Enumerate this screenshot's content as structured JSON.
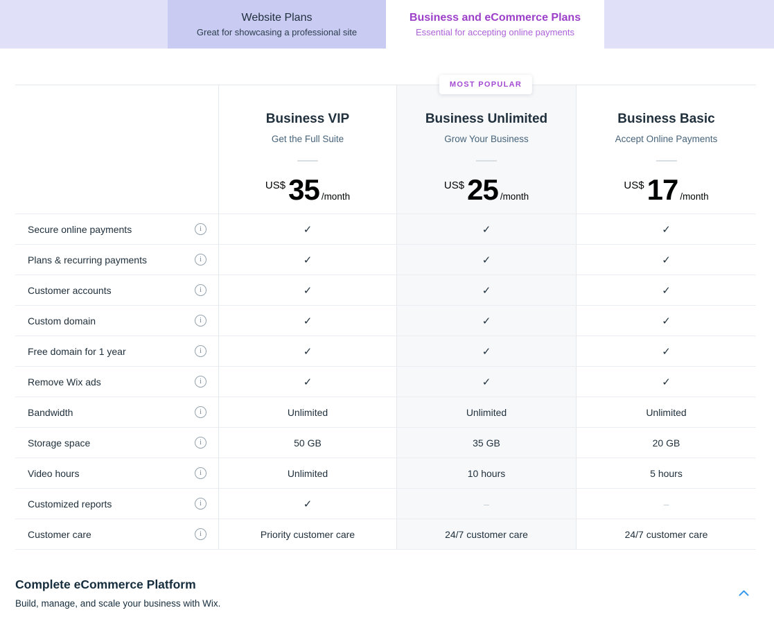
{
  "tabs": [
    {
      "title": "Website Plans",
      "subtitle": "Great for showcasing a professional site",
      "selected": false
    },
    {
      "title": "Business and eCommerce Plans",
      "subtitle": "Essential for accepting online payments",
      "selected": true
    }
  ],
  "most_popular_badge": "MOST POPULAR",
  "plans": [
    {
      "name": "Business VIP",
      "tagline": "Get the Full Suite",
      "currency": "US$",
      "price": "35",
      "period": "/month",
      "most_popular": false
    },
    {
      "name": "Business Unlimited",
      "tagline": "Grow Your Business",
      "currency": "US$",
      "price": "25",
      "period": "/month",
      "most_popular": true
    },
    {
      "name": "Business Basic",
      "tagline": "Accept Online Payments",
      "currency": "US$",
      "price": "17",
      "period": "/month",
      "most_popular": false
    }
  ],
  "features": [
    {
      "label": "Secure online payments",
      "values": [
        "check",
        "check",
        "check"
      ]
    },
    {
      "label": "Plans & recurring payments",
      "values": [
        "check",
        "check",
        "check"
      ]
    },
    {
      "label": "Customer accounts",
      "values": [
        "check",
        "check",
        "check"
      ]
    },
    {
      "label": "Custom domain",
      "values": [
        "check",
        "check",
        "check"
      ]
    },
    {
      "label": "Free domain for 1 year",
      "values": [
        "check",
        "check",
        "check"
      ]
    },
    {
      "label": "Remove Wix ads",
      "values": [
        "check",
        "check",
        "check"
      ]
    },
    {
      "label": "Bandwidth",
      "values": [
        "Unlimited",
        "Unlimited",
        "Unlimited"
      ]
    },
    {
      "label": "Storage space",
      "values": [
        "50 GB",
        "35 GB",
        "20 GB"
      ]
    },
    {
      "label": "Video hours",
      "values": [
        "Unlimited",
        "10 hours",
        "5 hours"
      ]
    },
    {
      "label": "Customized reports",
      "values": [
        "check",
        "dash",
        "dash"
      ]
    },
    {
      "label": "Customer care",
      "values": [
        "Priority customer care",
        "24/7 customer care",
        "24/7 customer care"
      ]
    }
  ],
  "footer": {
    "heading": "Complete eCommerce Platform",
    "subtitle": "Build, manage, and scale your business with Wix."
  },
  "colors": {
    "accent_purple": "#9c3fc9",
    "badge_purple": "#a44bd3",
    "strip_lavender": "#e0e1f8",
    "tab_lavender": "#c9cbf3",
    "highlight_column": "#f7f8fa",
    "text_navy": "#20303c",
    "chevron_blue": "#3899ec"
  }
}
